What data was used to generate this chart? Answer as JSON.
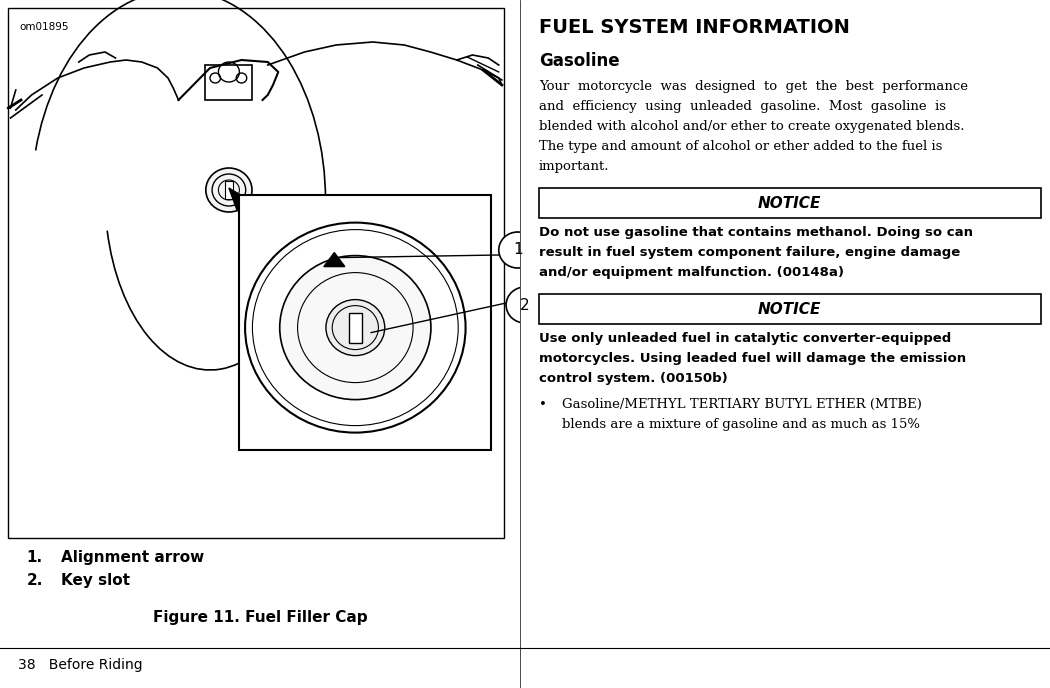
{
  "bg_color": "#ffffff",
  "figure_caption": "Figure 11. Fuel Filler Cap",
  "image_label_id": "om01895",
  "right_title": "FUEL SYSTEM INFORMATION",
  "right_subtitle": "Gasoline",
  "notice_label": "NOTICE",
  "notice1_lines": [
    "Do not use gasoline that contains methanol. Doing so can",
    "result in fuel system component failure, engine damage",
    "and/or equipment malfunction. (00148a)"
  ],
  "notice2_lines": [
    "Use only unleaded fuel in catalytic converter-equipped",
    "motorcycles. Using leaded fuel will damage the emission",
    "control system. (00150b)"
  ],
  "bullet_line1": "Gasoline/METHYL TERTIARY BUTYL ETHER (MTBE)",
  "bullet_line2": "blends are a mixture of gasoline and as much as 15%",
  "footer_text": "38   Before Riding",
  "body_lines": [
    "Your  motorcycle  was  designed  to  get  the  best  performance",
    "and  efficiency  using  unleaded  gasoline.  Most  gasoline  is",
    "blended with alcohol and/or ether to create oxygenated blends.",
    "The type and amount of alcohol or ether added to the fuel is",
    "important."
  ]
}
